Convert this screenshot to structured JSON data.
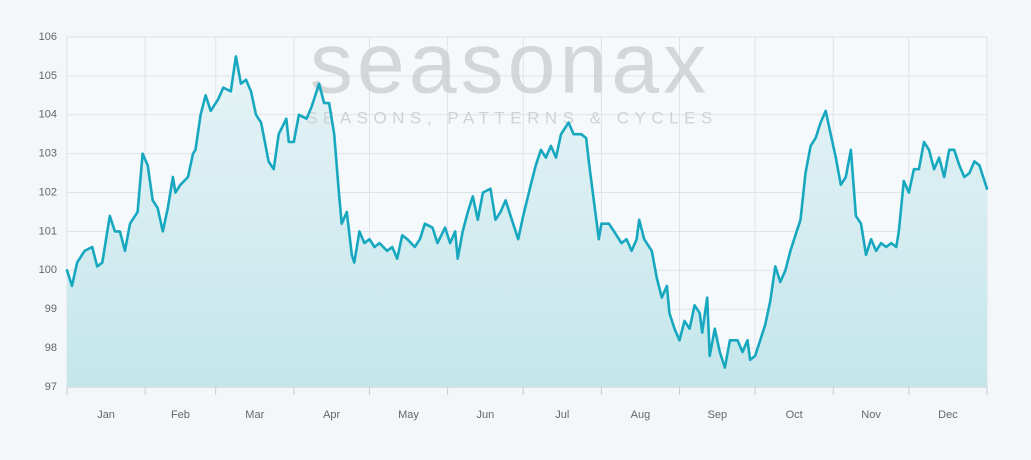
{
  "chart_data": {
    "type": "area",
    "watermark": "seasonax",
    "watermark_tagline": "SEASONS, PATTERNS & CYCLES",
    "color": "#17a8c0",
    "grid": true,
    "xlim": [
      0,
      365
    ],
    "ylim": [
      97,
      106
    ],
    "yticks": [
      97,
      98,
      99,
      100,
      101,
      102,
      103,
      104,
      105,
      106
    ],
    "xgrid": [
      0,
      31,
      59,
      90,
      120,
      151,
      181,
      212,
      243,
      273,
      304,
      334,
      365
    ],
    "xticks": [
      {
        "value": 15.5,
        "label": "Jan"
      },
      {
        "value": 45,
        "label": "Feb"
      },
      {
        "value": 74.5,
        "label": "Mar"
      },
      {
        "value": 105,
        "label": "Apr"
      },
      {
        "value": 135.5,
        "label": "May"
      },
      {
        "value": 166,
        "label": "Jun"
      },
      {
        "value": 196.5,
        "label": "Jul"
      },
      {
        "value": 227.5,
        "label": "Aug"
      },
      {
        "value": 258,
        "label": "Sep"
      },
      {
        "value": 288.5,
        "label": "Oct"
      },
      {
        "value": 319,
        "label": "Nov"
      },
      {
        "value": 349.5,
        "label": "Dec"
      }
    ],
    "x": [
      0,
      2,
      4,
      7,
      10,
      12,
      14,
      17,
      19,
      21,
      23,
      25,
      28,
      30,
      32,
      34,
      36,
      38,
      40,
      42,
      43,
      45,
      48,
      50,
      51,
      53,
      55,
      57,
      60,
      62,
      65,
      67,
      69,
      71,
      73,
      75,
      77,
      80,
      82,
      84,
      87,
      88,
      90,
      92,
      95,
      97,
      100,
      102,
      104,
      106,
      108,
      109,
      111,
      113,
      114,
      116,
      118,
      120,
      122,
      124,
      127,
      129,
      131,
      133,
      135,
      138,
      140,
      142,
      145,
      147,
      150,
      152,
      154,
      155,
      157,
      159,
      161,
      163,
      165,
      168,
      170,
      172,
      174,
      177,
      179,
      181,
      184,
      186,
      188,
      190,
      192,
      194,
      196,
      199,
      201,
      204,
      206,
      207,
      209,
      211,
      212,
      215,
      217,
      220,
      222,
      224,
      226,
      227,
      229,
      232,
      234,
      236,
      238,
      239,
      241,
      243,
      245,
      247,
      249,
      251,
      252,
      254,
      255,
      257,
      259,
      261,
      263,
      266,
      268,
      270,
      271,
      273,
      275,
      277,
      279,
      281,
      283,
      285,
      287,
      289,
      291,
      293,
      295,
      297,
      299,
      301,
      303,
      305,
      307,
      309,
      311,
      313,
      315,
      317,
      319,
      321,
      323,
      325,
      327,
      329,
      330,
      332,
      334,
      336,
      338,
      340,
      342,
      344,
      346,
      348,
      350,
      352,
      354,
      356,
      358,
      360,
      362,
      365
    ],
    "values": [
      100.0,
      99.6,
      100.2,
      100.5,
      100.6,
      100.1,
      100.2,
      101.4,
      101.0,
      101.0,
      100.5,
      101.2,
      101.5,
      103.0,
      102.7,
      101.8,
      101.6,
      101.0,
      101.6,
      102.4,
      102.0,
      102.2,
      102.4,
      103.0,
      103.1,
      104.0,
      104.5,
      104.1,
      104.4,
      104.7,
      104.6,
      105.5,
      104.8,
      104.9,
      104.6,
      104.0,
      103.8,
      102.8,
      102.6,
      103.5,
      103.9,
      103.3,
      103.3,
      104.0,
      103.9,
      104.2,
      104.8,
      104.3,
      104.3,
      103.5,
      101.9,
      101.2,
      101.5,
      100.4,
      100.2,
      101.0,
      100.7,
      100.8,
      100.6,
      100.7,
      100.5,
      100.6,
      100.3,
      100.9,
      100.8,
      100.6,
      100.8,
      101.2,
      101.1,
      100.7,
      101.1,
      100.7,
      101.0,
      100.3,
      101.0,
      101.5,
      101.9,
      101.3,
      102.0,
      102.1,
      101.3,
      101.5,
      101.8,
      101.2,
      100.8,
      101.4,
      102.2,
      102.7,
      103.1,
      102.9,
      103.2,
      102.9,
      103.5,
      103.8,
      103.5,
      103.5,
      103.4,
      102.8,
      101.8,
      100.8,
      101.2,
      101.2,
      101.0,
      100.7,
      100.8,
      100.5,
      100.8,
      101.3,
      100.8,
      100.5,
      99.8,
      99.3,
      99.6,
      98.9,
      98.5,
      98.2,
      98.7,
      98.5,
      99.1,
      98.9,
      98.4,
      99.3,
      97.8,
      98.5,
      97.9,
      97.5,
      98.2,
      98.2,
      97.9,
      98.2,
      97.7,
      97.8,
      98.2,
      98.6,
      99.2,
      100.1,
      99.7,
      100.0,
      100.5,
      100.9,
      101.3,
      102.5,
      103.2,
      103.4,
      103.8,
      104.1,
      103.5,
      102.9,
      102.2,
      102.4,
      103.1,
      101.4,
      101.2,
      100.4,
      100.8,
      100.5,
      100.7,
      100.6,
      100.7,
      100.6,
      101.0,
      102.3,
      102.0,
      102.6,
      102.6,
      103.3,
      103.1,
      102.6,
      102.9,
      102.4,
      103.1,
      103.1,
      102.7,
      102.4,
      102.5,
      102.8,
      102.7,
      102.1
    ]
  }
}
